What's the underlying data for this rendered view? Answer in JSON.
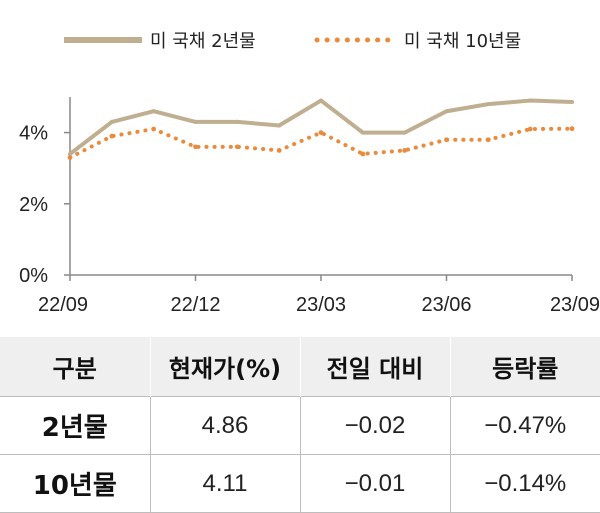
{
  "chart_data": {
    "type": "line",
    "ylim": [
      0,
      5
    ],
    "yticks": [
      "0%",
      "2%",
      "4%"
    ],
    "ytick_values": [
      0,
      2,
      4
    ],
    "xtick_labels": [
      "22/09",
      "22/12",
      "23/03",
      "23/06",
      "23/09"
    ],
    "x": [
      "22/09",
      "22/10",
      "22/11",
      "22/12",
      "23/01",
      "23/02",
      "23/03",
      "23/04",
      "23/05",
      "23/06",
      "23/07",
      "23/08",
      "23/09"
    ],
    "legend_position": "top",
    "series": [
      {
        "name": "미 국채 2년물",
        "color": "#bfae8f",
        "style": "solid",
        "values": [
          3.4,
          4.3,
          4.6,
          4.3,
          4.3,
          4.2,
          4.9,
          4.0,
          4.0,
          4.6,
          4.8,
          4.9,
          4.86
        ]
      },
      {
        "name": "미 국채 10년물",
        "color": "#ea8a3a",
        "style": "dotted",
        "values": [
          3.3,
          3.9,
          4.1,
          3.6,
          3.6,
          3.5,
          4.0,
          3.4,
          3.5,
          3.8,
          3.8,
          4.1,
          4.11
        ]
      }
    ]
  },
  "table": {
    "headers": [
      "구분",
      "현재가(%)",
      "전일 대비",
      "등락률"
    ],
    "rows": [
      [
        "2년물",
        "4.86",
        "−0.02",
        "−0.47%"
      ],
      [
        "10년물",
        "4.11",
        "−0.01",
        "−0.14%"
      ]
    ]
  }
}
